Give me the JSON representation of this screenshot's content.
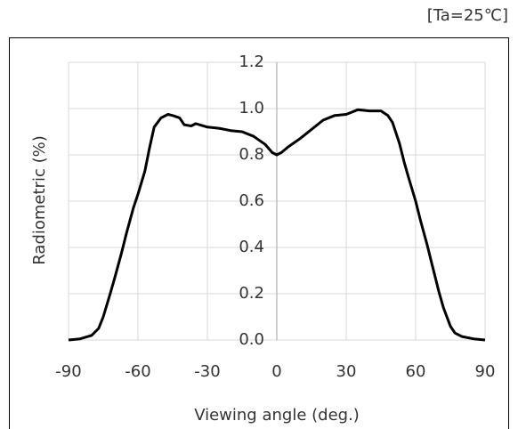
{
  "chart_data": {
    "type": "line",
    "annotation": "[Ta=25℃]",
    "xlabel": "Viewing angle (deg.)",
    "ylabel": "Radiometric (%)",
    "x": [
      -90,
      -85,
      -80,
      -77,
      -75,
      -72,
      -70,
      -67,
      -65,
      -62,
      -60,
      -57,
      -55,
      -53,
      -50,
      -47,
      -45,
      -42,
      -40,
      -37,
      -35,
      -30,
      -25,
      -20,
      -15,
      -10,
      -5,
      -2,
      0,
      2,
      5,
      10,
      15,
      20,
      25,
      30,
      35,
      40,
      45,
      48,
      50,
      53,
      55,
      57,
      60,
      62,
      65,
      67,
      70,
      72,
      75,
      77,
      80,
      85,
      90
    ],
    "series": [
      {
        "color": "#000000",
        "values": [
          0,
          0.005,
          0.02,
          0.05,
          0.1,
          0.2,
          0.27,
          0.38,
          0.46,
          0.57,
          0.63,
          0.73,
          0.83,
          0.92,
          0.96,
          0.975,
          0.97,
          0.96,
          0.93,
          0.925,
          0.935,
          0.92,
          0.915,
          0.905,
          0.9,
          0.88,
          0.845,
          0.81,
          0.8,
          0.81,
          0.835,
          0.87,
          0.91,
          0.95,
          0.97,
          0.975,
          0.995,
          0.99,
          0.99,
          0.97,
          0.94,
          0.85,
          0.77,
          0.7,
          0.6,
          0.52,
          0.41,
          0.33,
          0.21,
          0.14,
          0.06,
          0.03,
          0.015,
          0.005,
          0
        ]
      }
    ],
    "xlim": [
      -90,
      90
    ],
    "ylim": [
      0,
      1.2
    ],
    "xticks": [
      -90,
      -60,
      -30,
      0,
      30,
      60,
      90
    ],
    "yticks": [
      {
        "value": 0,
        "label": "0.0"
      },
      0.2,
      0.4,
      0.6,
      0.8,
      {
        "value": 1,
        "label": "1.0"
      },
      1.2
    ],
    "grid": true
  }
}
